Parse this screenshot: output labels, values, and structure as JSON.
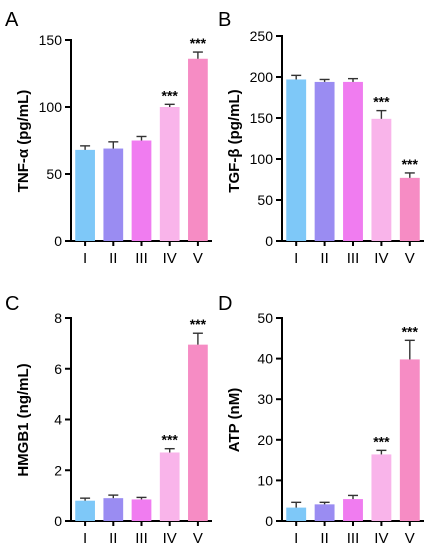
{
  "colors": [
    "#7ec8f8",
    "#9a8cf2",
    "#f07cf0",
    "#f9b4ea",
    "#f68cc4"
  ],
  "chart_data": [
    {
      "type": "bar",
      "panel_label": "A",
      "categories": [
        "I",
        "II",
        "III",
        "IV",
        "V"
      ],
      "values": [
        68,
        69,
        75,
        100,
        136
      ],
      "errors": [
        3,
        5,
        3,
        2,
        5
      ],
      "significance": [
        "",
        "",
        "",
        "***",
        "***"
      ],
      "ylabel": "TNF-α (pg/mL)",
      "ylim": [
        0,
        150
      ],
      "yticks": [
        0,
        50,
        100,
        150
      ],
      "ytick_labels": [
        "0",
        "50",
        "100",
        "150"
      ]
    },
    {
      "type": "bar",
      "panel_label": "B",
      "categories": [
        "I",
        "II",
        "III",
        "IV",
        "V"
      ],
      "values": [
        197,
        194,
        194,
        149,
        77
      ],
      "errors": [
        5,
        3,
        4,
        10,
        6
      ],
      "significance": [
        "",
        "",
        "",
        "***",
        "***"
      ],
      "ylabel": "TGF-β (pg/mL)",
      "ylim": [
        0,
        250
      ],
      "yticks": [
        0,
        50,
        100,
        150,
        200,
        250
      ],
      "ytick_labels": [
        "0",
        "50",
        "100",
        "150",
        "200",
        "250"
      ]
    },
    {
      "type": "bar",
      "panel_label": "C",
      "categories": [
        "I",
        "II",
        "III",
        "IV",
        "V"
      ],
      "values": [
        0.8,
        0.9,
        0.85,
        2.7,
        6.95
      ],
      "errors": [
        0.1,
        0.12,
        0.08,
        0.15,
        0.45
      ],
      "significance": [
        "",
        "",
        "",
        "***",
        "***"
      ],
      "ylabel": "HMGB1 (ng/mL)",
      "ylim": [
        0,
        8
      ],
      "yticks": [
        0,
        2,
        4,
        6,
        8
      ],
      "ytick_labels": [
        "0",
        "2",
        "4",
        "6",
        "8"
      ]
    },
    {
      "type": "bar",
      "panel_label": "D",
      "categories": [
        "I",
        "II",
        "III",
        "IV",
        "V"
      ],
      "values": [
        3.3,
        4.1,
        5.4,
        16.4,
        39.8
      ],
      "errors": [
        1.3,
        0.5,
        0.9,
        1.0,
        4.7
      ],
      "significance": [
        "",
        "",
        "",
        "***",
        "***"
      ],
      "ylabel": "ATP (nM)",
      "ylim": [
        0,
        50
      ],
      "yticks": [
        0,
        10,
        20,
        30,
        40,
        50
      ],
      "ytick_labels": [
        "0",
        "10",
        "20",
        "30",
        "40",
        "50"
      ]
    }
  ]
}
